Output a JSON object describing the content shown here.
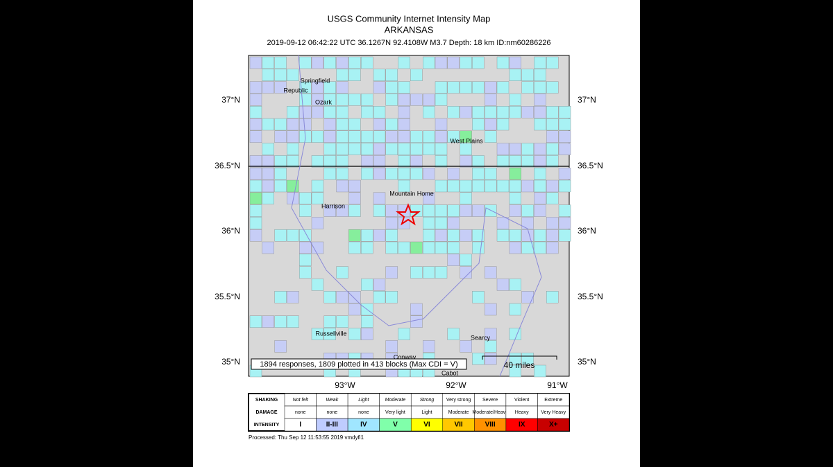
{
  "title": "USGS Community Internet Intensity Map",
  "region": "ARKANSAS",
  "event_info": "2019-09-12 06:42:22 UTC 36.1267N 92.4108W M3.7 Depth: 18 km ID:nm60286226",
  "latitude_labels": [
    "37°N",
    "36.5°N",
    "36°N",
    "35.5°N",
    "35°N"
  ],
  "longitude_labels": [
    "93°W",
    "92°W",
    "91°W"
  ],
  "places": [
    "Springfield",
    "Republic",
    "Ozark",
    "West Plains",
    "Mountain Home",
    "Harrison",
    "Russellville",
    "Searcy",
    "Conway",
    "Cabot"
  ],
  "responses_note": "1894 responses, 1809 plotted in 413 blocks (Max CDI = V)",
  "scale_label": "40 miles",
  "legend": {
    "row_headers": [
      "SHAKING",
      "DAMAGE",
      "INTENSITY"
    ],
    "shaking": [
      "Not felt",
      "Weak",
      "Light",
      "Moderate",
      "Strong",
      "Very strong",
      "Severe",
      "Violent",
      "Extreme"
    ],
    "damage": [
      "none",
      "none",
      "none",
      "Very light",
      "Light",
      "Moderate",
      "Moderate/Heavy",
      "Heavy",
      "Very Heavy"
    ],
    "intensity": [
      "I",
      "II-III",
      "IV",
      "V",
      "VI",
      "VII",
      "VIII",
      "IX",
      "X+"
    ]
  },
  "processed": "Processed: Thu Sep 12 11:53:55 2019 vmdyfi1"
}
